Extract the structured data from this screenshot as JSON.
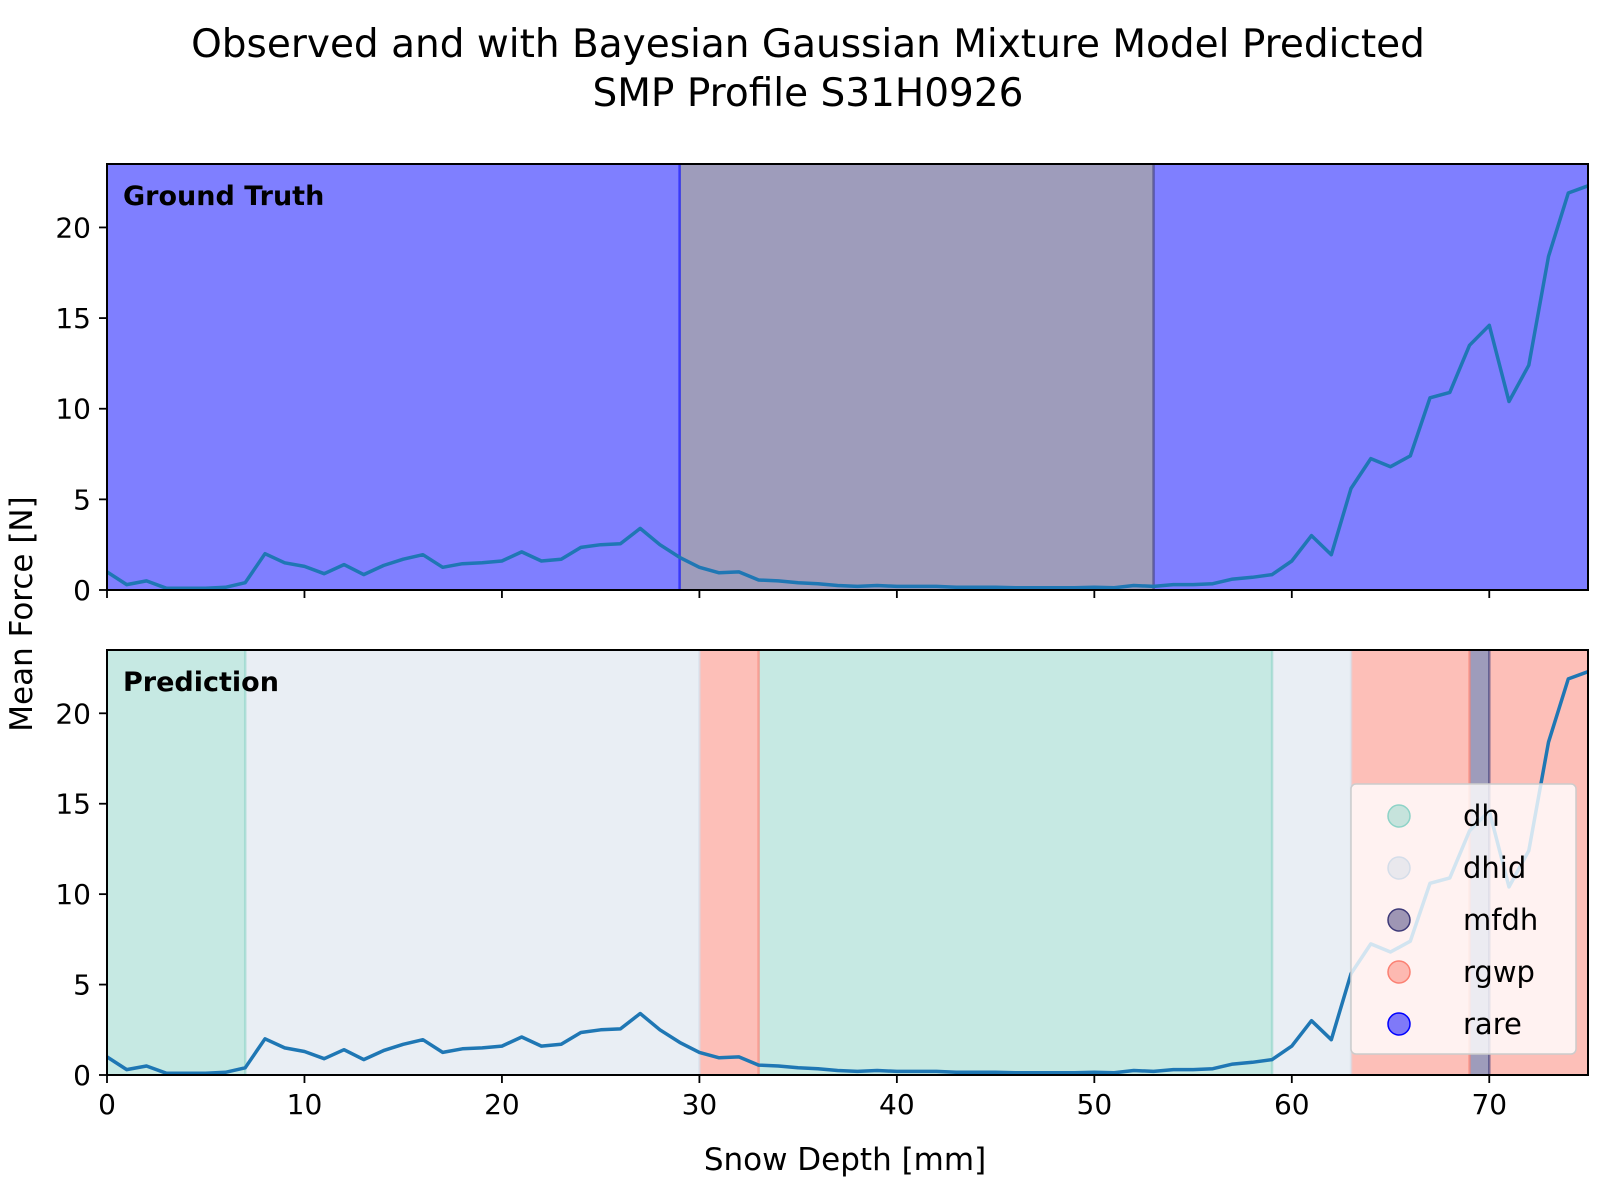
{
  "chart_data": {
    "type": "line",
    "title_line1": "Observed and with Bayesian Gaussian Mixture Model Predicted",
    "title_line2": "SMP Profile S31H0926",
    "xlabel": "Snow Depth [mm]",
    "ylabel": "Mean Force [N]",
    "xlim": [
      0,
      75
    ],
    "ylim": [
      0,
      23.5
    ],
    "x_ticks": [
      0,
      10,
      20,
      30,
      40,
      50,
      60,
      70
    ],
    "y_ticks": [
      0,
      5,
      10,
      15,
      20
    ],
    "classes": [
      {
        "name": "dh",
        "color": "#8dd3c7"
      },
      {
        "name": "dhid",
        "color": "#d4dde9"
      },
      {
        "name": "mfdh",
        "color": "#3e3a78"
      },
      {
        "name": "rgwp",
        "color": "#fb8072"
      },
      {
        "name": "rare",
        "color": "#0000ff"
      }
    ],
    "series": {
      "x": [
        0,
        1,
        2,
        3,
        4,
        5,
        6,
        7,
        8,
        9,
        10,
        11,
        12,
        13,
        14,
        15,
        16,
        17,
        18,
        19,
        20,
        21,
        22,
        23,
        24,
        25,
        26,
        27,
        28,
        29,
        30,
        31,
        32,
        33,
        34,
        35,
        36,
        37,
        38,
        39,
        40,
        41,
        42,
        43,
        44,
        45,
        46,
        47,
        48,
        49,
        50,
        51,
        52,
        53,
        54,
        55,
        56,
        57,
        58,
        59,
        60,
        61,
        62,
        63,
        64,
        65,
        66,
        67,
        68,
        69,
        70,
        71,
        72,
        73,
        74,
        75
      ],
      "y": [
        1.0,
        0.3,
        0.5,
        0.1,
        0.1,
        0.1,
        0.15,
        0.4,
        2.0,
        1.5,
        1.3,
        0.9,
        1.4,
        0.85,
        1.35,
        1.7,
        1.95,
        1.25,
        1.45,
        1.5,
        1.6,
        2.1,
        1.6,
        1.7,
        2.35,
        2.5,
        2.55,
        3.4,
        2.5,
        1.8,
        1.25,
        0.95,
        1.0,
        0.55,
        0.5,
        0.4,
        0.35,
        0.25,
        0.2,
        0.25,
        0.2,
        0.2,
        0.2,
        0.15,
        0.15,
        0.15,
        0.12,
        0.12,
        0.12,
        0.12,
        0.15,
        0.12,
        0.25,
        0.2,
        0.3,
        0.3,
        0.35,
        0.6,
        0.7,
        0.85,
        1.6,
        3.0,
        1.95,
        5.6,
        7.25,
        6.8,
        7.4,
        10.6,
        10.9,
        13.5,
        14.6,
        10.4,
        12.4,
        18.4,
        21.9,
        22.3
      ]
    },
    "panels": [
      {
        "label": "Ground Truth",
        "segments": [
          {
            "start": 0,
            "end": 29,
            "class": "rare"
          },
          {
            "start": 29,
            "end": 53,
            "class": "mfdh"
          },
          {
            "start": 53,
            "end": 75,
            "class": "rare"
          }
        ]
      },
      {
        "label": "Prediction",
        "segments": [
          {
            "start": 0,
            "end": 7,
            "class": "dh"
          },
          {
            "start": 7,
            "end": 30,
            "class": "dhid"
          },
          {
            "start": 30,
            "end": 33,
            "class": "rgwp"
          },
          {
            "start": 33,
            "end": 59,
            "class": "dh"
          },
          {
            "start": 59,
            "end": 63,
            "class": "dhid"
          },
          {
            "start": 63,
            "end": 69,
            "class": "rgwp"
          },
          {
            "start": 69,
            "end": 70,
            "class": "mfdh"
          },
          {
            "start": 70,
            "end": 75,
            "class": "rgwp"
          }
        ]
      }
    ],
    "legend_position": "lower-right of prediction panel",
    "line_color": "#1f77b4",
    "grid": false
  }
}
